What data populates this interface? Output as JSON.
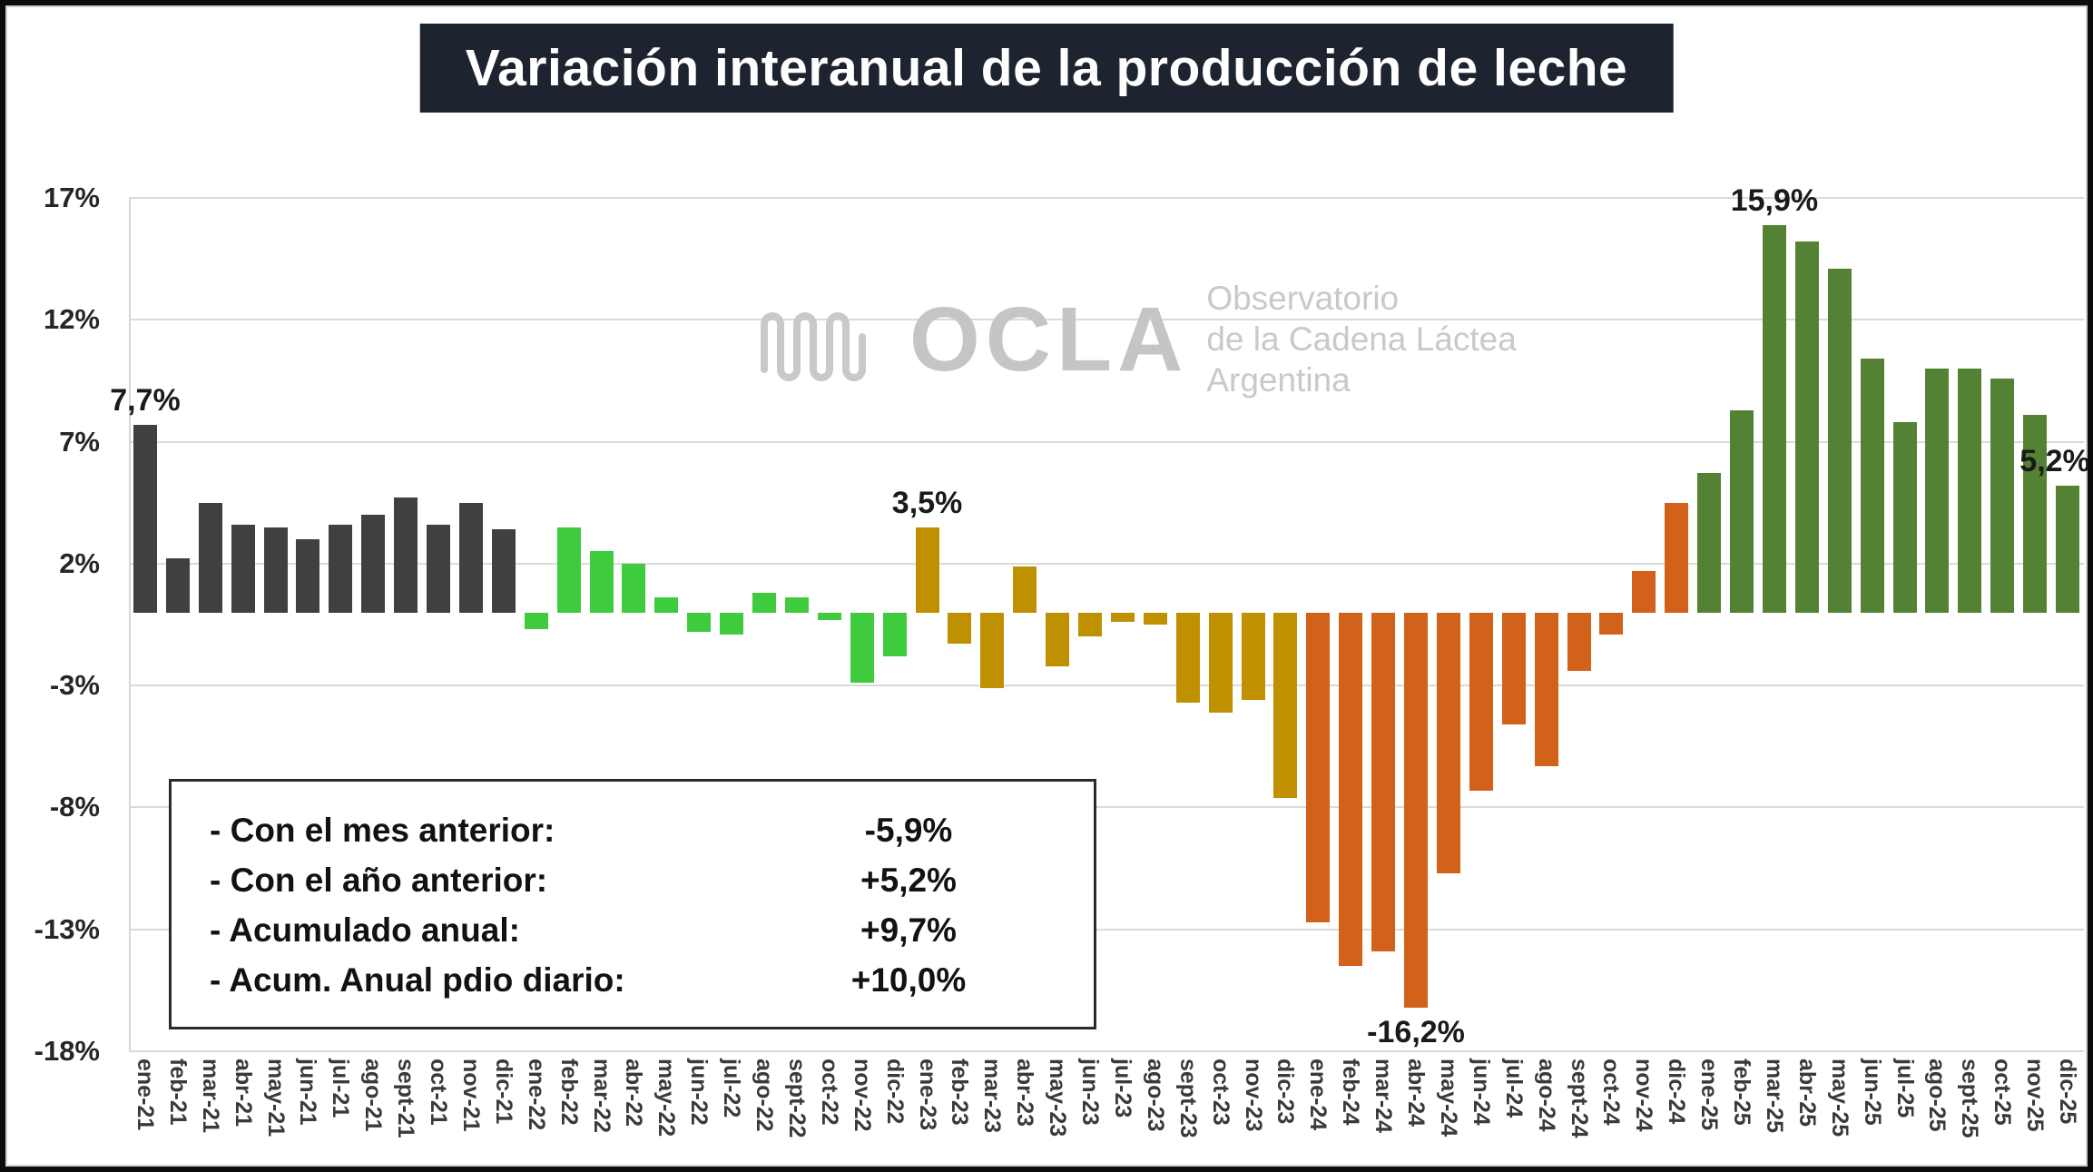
{
  "title": "Variación interanual de la producción de leche",
  "watermark": {
    "logo_text": "OCLA",
    "subtitle_lines": [
      "Observatorio",
      "de la Cadena Láctea",
      "Argentina"
    ]
  },
  "summary_box": {
    "rows": [
      {
        "label": "- Con el mes anterior:",
        "value": "-5,9%"
      },
      {
        "label": "- Con el año anterior:",
        "value": "+5,2%"
      },
      {
        "label": "- Acumulado anual:",
        "value": "+9,7%"
      },
      {
        "label": "- Acum. Anual pdio diario:",
        "value": "+10,0%"
      }
    ]
  },
  "chart_data": {
    "type": "bar",
    "title": "Variación interanual de la producción de leche",
    "xlabel": "",
    "ylabel": "",
    "ylim": [
      -18,
      17
    ],
    "yticks": [
      17,
      12,
      7,
      2,
      -3,
      -8,
      -13,
      -18
    ],
    "ytick_labels": [
      "17%",
      "12%",
      "7%",
      "2%",
      "-3%",
      "-8%",
      "-13%",
      "-18%"
    ],
    "grid": true,
    "legend": "none",
    "categories": [
      "ene-21",
      "feb-21",
      "mar-21",
      "abr-21",
      "may-21",
      "jun-21",
      "jul-21",
      "ago-21",
      "sept-21",
      "oct-21",
      "nov-21",
      "dic-21",
      "ene-22",
      "feb-22",
      "mar-22",
      "abr-22",
      "may-22",
      "jun-22",
      "jul-22",
      "ago-22",
      "sept-22",
      "oct-22",
      "nov-22",
      "dic-22",
      "ene-23",
      "feb-23",
      "mar-23",
      "abr-23",
      "may-23",
      "jun-23",
      "jul-23",
      "ago-23",
      "sept-23",
      "oct-23",
      "nov-23",
      "dic-23",
      "ene-24",
      "feb-24",
      "mar-24",
      "abr-24",
      "may-24",
      "jun-24",
      "jul-24",
      "ago-24",
      "sept-24",
      "oct-24",
      "nov-24",
      "dic-24",
      "ene-25",
      "feb-25",
      "mar-25",
      "abr-25",
      "may-25",
      "jun-25",
      "jul-25",
      "ago-25",
      "sept-25",
      "oct-25",
      "nov-25",
      "dic-25"
    ],
    "values": [
      7.7,
      2.2,
      4.5,
      3.6,
      3.5,
      3.0,
      3.6,
      4.0,
      4.7,
      3.6,
      4.5,
      3.4,
      -0.7,
      3.5,
      2.5,
      2.0,
      0.6,
      -0.8,
      -0.9,
      0.8,
      0.6,
      -0.3,
      -2.9,
      -1.8,
      3.5,
      -1.3,
      -3.1,
      1.9,
      -2.2,
      -1.0,
      -0.4,
      -0.5,
      -3.7,
      -4.1,
      -3.6,
      -7.6,
      -12.7,
      -14.5,
      -13.9,
      -16.2,
      -10.7,
      -7.3,
      -4.6,
      -6.3,
      -2.4,
      -0.9,
      1.7,
      4.5,
      5.7,
      8.3,
      15.9,
      15.2,
      14.1,
      10.4,
      7.8,
      10.0,
      10.0,
      9.6,
      8.1,
      5.2
    ],
    "colors_by_year": {
      "21": "#404040",
      "22": "#3ecc3e",
      "23": "#bf9000",
      "24": "#d2611a",
      "25": "#548235"
    },
    "annotations": [
      {
        "index": 0,
        "text": "7,7%"
      },
      {
        "index": 24,
        "text": "3,5%"
      },
      {
        "index": 39,
        "text": "-16,2%"
      },
      {
        "index": 50,
        "text": "15,9%"
      },
      {
        "index": 59,
        "text": "5,2%",
        "dx": -14
      }
    ]
  }
}
